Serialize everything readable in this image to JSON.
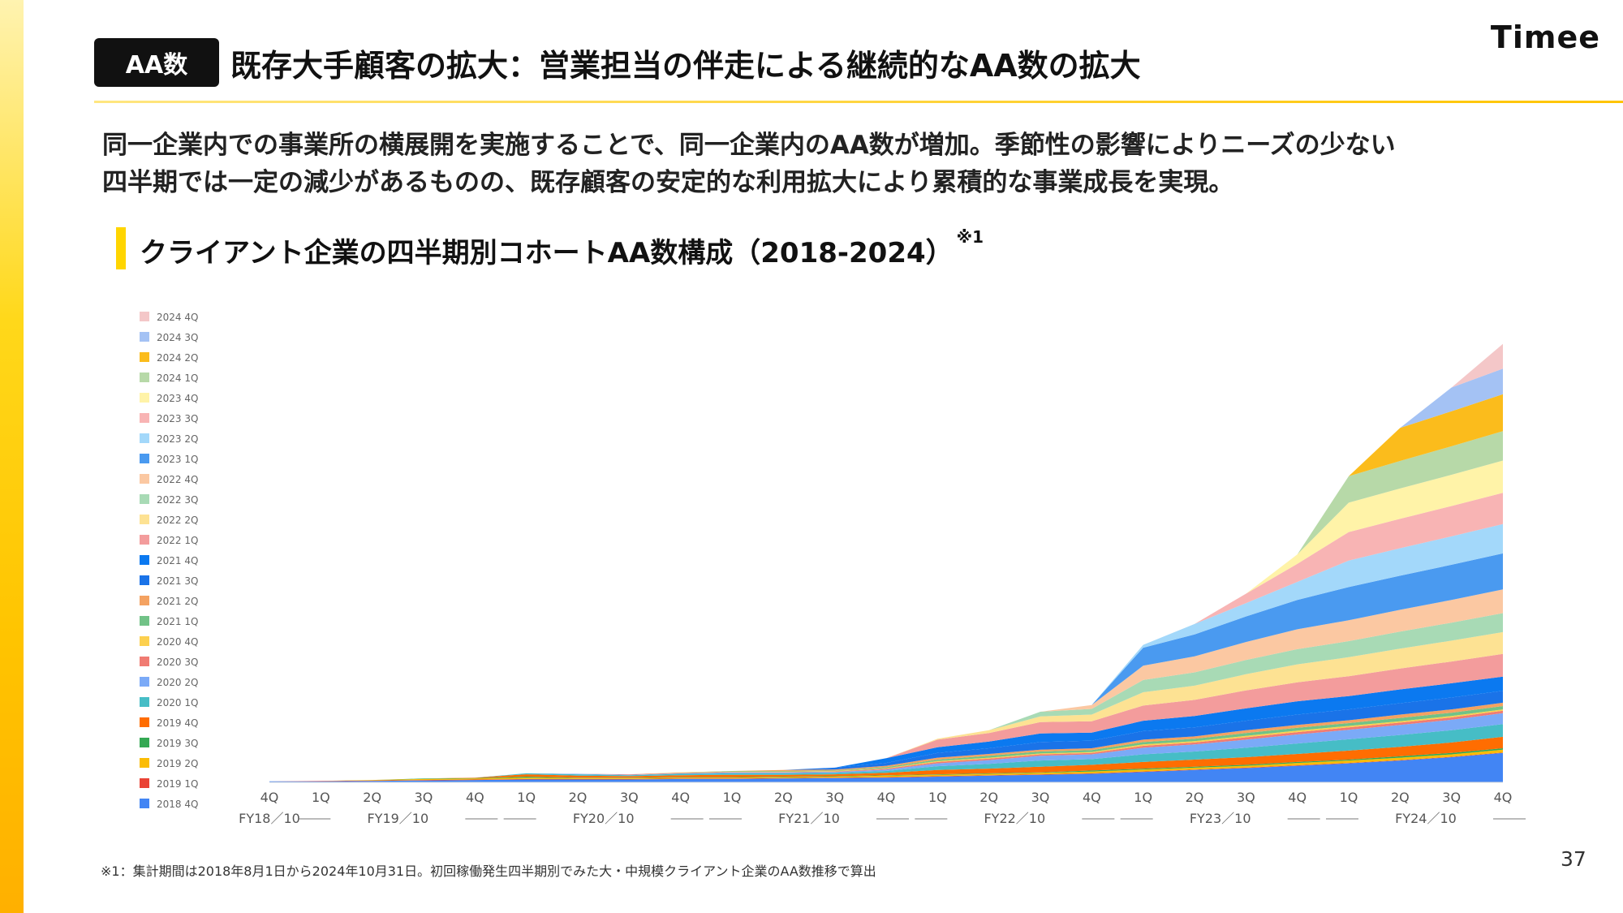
{
  "header": {
    "badge": "AA数",
    "title": "既存大手顧客の拡大：営業担当の伴走による継続的なAA数の拡大",
    "logo": "Timee"
  },
  "description": {
    "line1": "同一企業内での事業所の横展開を実施することで、同一企業内のAA数が増加。季節性の影響によりニーズの少ない",
    "line2": "四半期では一定の減少があるものの、既存顧客の安定的な利用拡大により累積的な事業成長を実現。"
  },
  "section": {
    "title": "クライアント企業の四半期別コホートAA数構成（2018-2024）",
    "note_marker": "※1"
  },
  "footnote": "※1：集計期間は2018年8月1日から2024年10月31日。初回稼働発生四半期別でみた大・中規模クライアント企業のAA数推移で算出",
  "page_number": "37",
  "chart_data": {
    "type": "area",
    "stacked": true,
    "ylim": [
      0,
      1000
    ],
    "x": [
      "4Q",
      "1Q",
      "2Q",
      "3Q",
      "4Q",
      "1Q",
      "2Q",
      "3Q",
      "4Q",
      "1Q",
      "2Q",
      "3Q",
      "4Q",
      "1Q",
      "2Q",
      "3Q",
      "4Q",
      "1Q",
      "2Q",
      "3Q",
      "4Q",
      "1Q",
      "2Q",
      "3Q",
      "4Q"
    ],
    "fiscal_years": [
      {
        "label": "FY18／10",
        "from": 0,
        "to": 0
      },
      {
        "label": "FY19／10",
        "from": 1,
        "to": 4
      },
      {
        "label": "FY20／10",
        "from": 5,
        "to": 8
      },
      {
        "label": "FY21／10",
        "from": 9,
        "to": 12
      },
      {
        "label": "FY22／10",
        "from": 13,
        "to": 16
      },
      {
        "label": "FY23／10",
        "from": 17,
        "to": 20
      },
      {
        "label": "FY24／10",
        "from": 21,
        "to": 24
      }
    ],
    "legend_position": "left",
    "series": [
      {
        "name": "2018 4Q",
        "color": "#4285f4",
        "values": [
          2,
          2,
          3,
          4,
          5,
          6,
          6,
          6,
          7,
          7,
          8,
          9,
          10,
          12,
          14,
          16,
          18,
          22,
          26,
          30,
          35,
          40,
          46,
          53,
          62
        ]
      },
      {
        "name": "2019 1Q",
        "color": "#ea4335",
        "values": [
          0,
          1,
          1,
          1,
          1,
          1,
          1,
          1,
          1,
          1,
          1,
          1,
          1,
          1,
          1,
          1,
          1,
          1,
          1,
          1,
          1,
          1,
          1,
          1,
          1
        ]
      },
      {
        "name": "2019 2Q",
        "color": "#fbbc04",
        "values": [
          0,
          0,
          1,
          2,
          2,
          3,
          2,
          2,
          2,
          2,
          2,
          2,
          3,
          3,
          3,
          3,
          4,
          4,
          4,
          4,
          5,
          5,
          5,
          5,
          6
        ]
      },
      {
        "name": "2019 3Q",
        "color": "#34a853",
        "values": [
          0,
          0,
          0,
          1,
          1,
          2,
          1,
          1,
          1,
          1,
          1,
          1,
          1,
          1,
          1,
          1,
          2,
          2,
          2,
          2,
          2,
          2,
          3,
          3,
          3
        ]
      },
      {
        "name": "2019 4Q",
        "color": "#ff6d01",
        "values": [
          0,
          0,
          0,
          0,
          1,
          5,
          4,
          3,
          4,
          5,
          4,
          4,
          5,
          9,
          10,
          12,
          12,
          14,
          15,
          16,
          17,
          19,
          20,
          22,
          24
        ]
      },
      {
        "name": "2020 1Q",
        "color": "#46bdc6",
        "values": [
          0,
          0,
          0,
          0,
          0,
          2,
          3,
          2,
          3,
          3,
          3,
          3,
          4,
          8,
          10,
          13,
          12,
          16,
          17,
          20,
          22,
          24,
          25,
          26,
          27
        ]
      },
      {
        "name": "2020 2Q",
        "color": "#7baaf7",
        "values": [
          0,
          0,
          0,
          0,
          0,
          0,
          1,
          1,
          1,
          2,
          2,
          2,
          3,
          6,
          8,
          10,
          10,
          14,
          15,
          17,
          19,
          20,
          21,
          22,
          23
        ]
      },
      {
        "name": "2020 3Q",
        "color": "#f07b72",
        "values": [
          0,
          0,
          0,
          0,
          0,
          0,
          0,
          1,
          1,
          1,
          1,
          1,
          2,
          3,
          3,
          3,
          3,
          4,
          4,
          5,
          5,
          5,
          5,
          5,
          5
        ]
      },
      {
        "name": "2020 4Q",
        "color": "#fcd04f",
        "values": [
          0,
          0,
          0,
          0,
          0,
          0,
          0,
          0,
          1,
          1,
          1,
          1,
          1,
          2,
          2,
          2,
          2,
          3,
          3,
          3,
          3,
          3,
          3,
          3,
          3
        ]
      },
      {
        "name": "2021 1Q",
        "color": "#71c287",
        "values": [
          0,
          0,
          0,
          0,
          0,
          0,
          0,
          0,
          0,
          1,
          1,
          1,
          2,
          3,
          4,
          4,
          4,
          5,
          5,
          6,
          6,
          6,
          7,
          7,
          7
        ]
      },
      {
        "name": "2021 2Q",
        "color": "#f4a261",
        "values": [
          0,
          0,
          0,
          0,
          0,
          0,
          0,
          0,
          0,
          0,
          2,
          2,
          3,
          4,
          4,
          4,
          4,
          5,
          5,
          6,
          6,
          6,
          7,
          7,
          7
        ]
      },
      {
        "name": "2021 3Q",
        "color": "#1a73e8",
        "values": [
          0,
          0,
          0,
          0,
          0,
          0,
          0,
          0,
          0,
          0,
          0,
          4,
          6,
          10,
          12,
          16,
          16,
          18,
          19,
          20,
          22,
          23,
          24,
          25,
          25
        ]
      },
      {
        "name": "2021 4Q",
        "color": "#0b79f0",
        "values": [
          0,
          0,
          0,
          0,
          0,
          0,
          0,
          0,
          0,
          0,
          0,
          0,
          10,
          12,
          14,
          18,
          17,
          22,
          24,
          26,
          28,
          28,
          29,
          30,
          30
        ]
      },
      {
        "name": "2022 1Q",
        "color": "#f39c9c",
        "values": [
          0,
          0,
          0,
          0,
          0,
          0,
          0,
          0,
          0,
          0,
          0,
          0,
          0,
          16,
          18,
          24,
          24,
          32,
          34,
          38,
          40,
          42,
          44,
          46,
          48
        ]
      },
      {
        "name": "2022 2Q",
        "color": "#fde293",
        "values": [
          0,
          0,
          0,
          0,
          0,
          0,
          0,
          0,
          0,
          0,
          0,
          0,
          0,
          2,
          6,
          12,
          14,
          28,
          30,
          34,
          38,
          40,
          42,
          44,
          46
        ]
      },
      {
        "name": "2022 3Q",
        "color": "#a8dab5",
        "values": [
          0,
          0,
          0,
          0,
          0,
          0,
          0,
          0,
          0,
          0,
          0,
          0,
          0,
          0,
          0,
          10,
          12,
          26,
          28,
          30,
          32,
          34,
          36,
          38,
          40
        ]
      },
      {
        "name": "2022 4Q",
        "color": "#fbc8a2",
        "values": [
          0,
          0,
          0,
          0,
          0,
          0,
          0,
          0,
          0,
          0,
          0,
          0,
          0,
          0,
          0,
          0,
          8,
          30,
          34,
          38,
          42,
          44,
          46,
          48,
          50
        ]
      },
      {
        "name": "2023 1Q",
        "color": "#4a9af0",
        "values": [
          0,
          0,
          0,
          0,
          0,
          0,
          0,
          0,
          0,
          0,
          0,
          0,
          0,
          0,
          0,
          0,
          0,
          38,
          46,
          54,
          62,
          70,
          72,
          74,
          76
        ]
      },
      {
        "name": "2023 2Q",
        "color": "#a3d8fa",
        "values": [
          0,
          0,
          0,
          0,
          0,
          0,
          0,
          0,
          0,
          0,
          0,
          0,
          0,
          0,
          0,
          0,
          0,
          6,
          22,
          28,
          38,
          56,
          58,
          60,
          62
        ]
      },
      {
        "name": "2023 3Q",
        "color": "#f8b4b4",
        "values": [
          0,
          0,
          0,
          0,
          0,
          0,
          0,
          0,
          0,
          0,
          0,
          0,
          0,
          0,
          0,
          0,
          0,
          0,
          0,
          20,
          38,
          60,
          62,
          64,
          66
        ]
      },
      {
        "name": "2023 4Q",
        "color": "#fff3a8",
        "values": [
          0,
          0,
          0,
          0,
          0,
          0,
          0,
          0,
          0,
          0,
          0,
          0,
          0,
          0,
          0,
          0,
          0,
          0,
          0,
          0,
          20,
          62,
          64,
          66,
          68
        ]
      },
      {
        "name": "2024 1Q",
        "color": "#b7d9a8",
        "values": [
          0,
          0,
          0,
          0,
          0,
          0,
          0,
          0,
          0,
          0,
          0,
          0,
          0,
          0,
          0,
          0,
          0,
          0,
          0,
          0,
          0,
          56,
          58,
          60,
          62
        ]
      },
      {
        "name": "2024 2Q",
        "color": "#fbbc1c",
        "values": [
          0,
          0,
          0,
          0,
          0,
          0,
          0,
          0,
          0,
          0,
          0,
          0,
          0,
          0,
          0,
          0,
          0,
          0,
          0,
          0,
          0,
          0,
          70,
          74,
          78
        ]
      },
      {
        "name": "2024 3Q",
        "color": "#a4c2f4",
        "values": [
          0,
          0,
          0,
          0,
          0,
          0,
          0,
          0,
          0,
          0,
          0,
          0,
          0,
          0,
          0,
          0,
          0,
          0,
          0,
          0,
          0,
          0,
          0,
          50,
          54
        ]
      },
      {
        "name": "2024 4Q",
        "color": "#f4c7c8",
        "values": [
          0,
          0,
          0,
          0,
          0,
          0,
          0,
          0,
          0,
          0,
          0,
          0,
          0,
          0,
          0,
          0,
          0,
          0,
          0,
          0,
          0,
          0,
          0,
          0,
          52
        ]
      }
    ]
  }
}
